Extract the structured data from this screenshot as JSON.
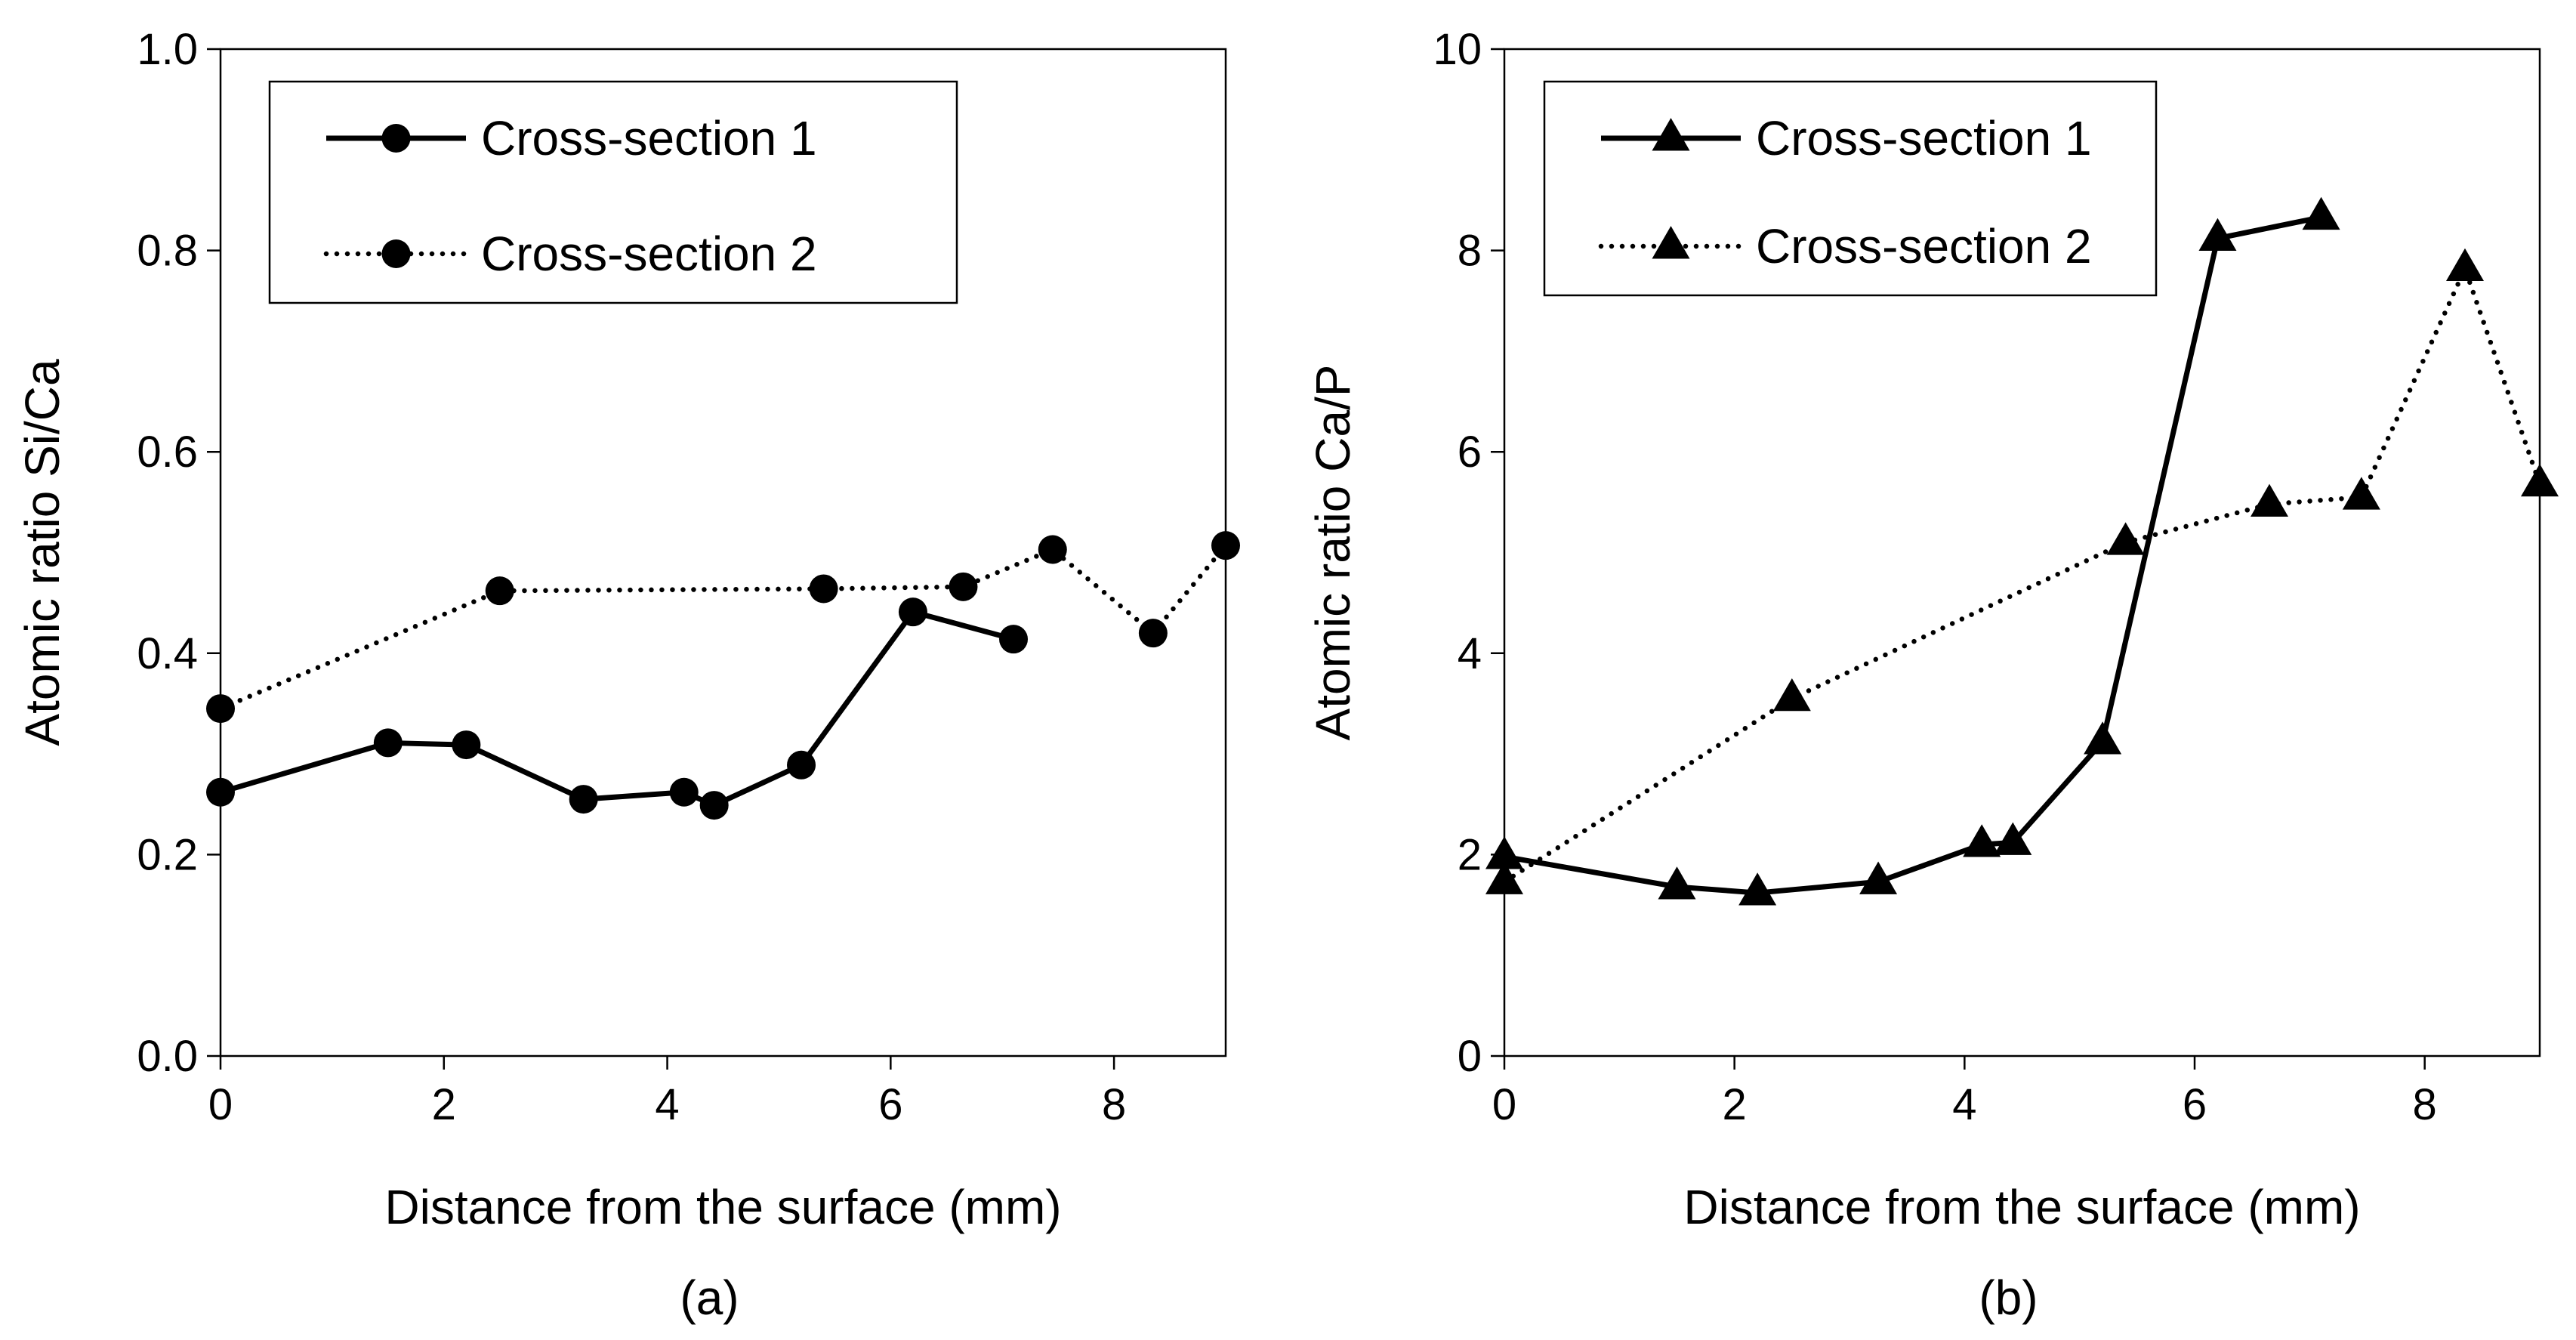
{
  "chart_data": [
    {
      "type": "line",
      "panel_label": "(a)",
      "xlabel": "Distance from the surface (mm)",
      "ylabel": "Atomic ratio Si/Ca",
      "xlim": [
        0,
        9
      ],
      "ylim": [
        0,
        1
      ],
      "x_ticks": [
        0,
        2,
        4,
        6,
        8
      ],
      "x_tick_labels": [
        "0",
        "2",
        "4",
        "6",
        "8"
      ],
      "y_ticks": [
        0,
        0.2,
        0.4,
        0.6,
        0.8,
        1.0
      ],
      "y_tick_labels": [
        "0.0",
        "0.2",
        "0.4",
        "0.6",
        "0.8",
        "1.0"
      ],
      "grid": false,
      "legend_position": "top-left",
      "series": [
        {
          "name": "Cross-section 1",
          "line_style": "solid",
          "marker": "circle",
          "x": [
            0,
            1.5,
            2.2,
            3.25,
            4.15,
            4.42,
            5.2,
            6.2,
            7.1
          ],
          "y": [
            0.262,
            0.311,
            0.309,
            0.255,
            0.262,
            0.249,
            0.289,
            0.441,
            0.414
          ]
        },
        {
          "name": "Cross-section 2",
          "line_style": "dotted",
          "marker": "circle",
          "x": [
            0,
            2.5,
            5.4,
            6.65,
            7.45,
            8.35,
            9.0
          ],
          "y": [
            0.345,
            0.462,
            0.464,
            0.466,
            0.503,
            0.42,
            0.507
          ]
        }
      ]
    },
    {
      "type": "line",
      "panel_label": "(b)",
      "xlabel": "Distance from the surface (mm)",
      "ylabel": "Atomic ratio Ca/P",
      "xlim": [
        0,
        9
      ],
      "ylim": [
        0,
        10
      ],
      "x_ticks": [
        0,
        2,
        4,
        6,
        8
      ],
      "x_tick_labels": [
        "0",
        "2",
        "4",
        "6",
        "8"
      ],
      "y_ticks": [
        0,
        2,
        4,
        6,
        8,
        10
      ],
      "y_tick_labels": [
        "0",
        "2",
        "4",
        "6",
        "8",
        "10"
      ],
      "grid": false,
      "legend_position": "top-left",
      "series": [
        {
          "name": "Cross-section 1",
          "line_style": "solid",
          "marker": "triangle",
          "x": [
            0,
            1.5,
            2.2,
            3.25,
            4.15,
            4.42,
            5.2,
            6.2,
            7.1
          ],
          "y": [
            1.98,
            1.68,
            1.62,
            1.73,
            2.1,
            2.12,
            3.12,
            8.12,
            8.33
          ]
        },
        {
          "name": "Cross-section 2",
          "line_style": "dotted",
          "marker": "triangle",
          "x": [
            0,
            2.5,
            5.4,
            6.65,
            7.45,
            8.35,
            9.0
          ],
          "y": [
            1.73,
            3.55,
            5.1,
            5.48,
            5.55,
            7.82,
            5.68
          ]
        }
      ]
    }
  ]
}
